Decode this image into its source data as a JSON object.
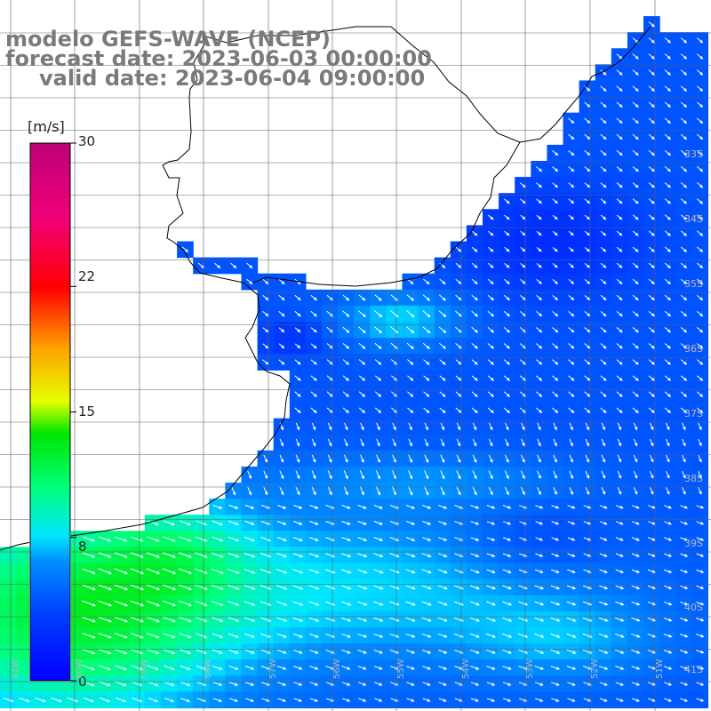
{
  "title": {
    "line1": "modelo GEFS-WAVE (NCEP)",
    "line2": "forecast date: 2023-06-03 00:00:00",
    "line3": "valid date: 2023-06-04 09:00:00"
  },
  "colorbar": {
    "unit": "[m/s]",
    "ticks": [
      "30",
      "22",
      "15",
      "8",
      "0"
    ],
    "tick_values": [
      30,
      22,
      15,
      8,
      0
    ],
    "colors": [
      "#0000ff",
      "#0080ff",
      "#00ffff",
      "#00ff00",
      "#ffff00",
      "#ff8000",
      "#ff0000",
      "#ff00aa",
      "#c0007f"
    ]
  },
  "map": {
    "lat_labels": [
      "33S",
      "34S",
      "35S",
      "36S",
      "37S",
      "38S",
      "39S",
      "40S",
      "41S"
    ],
    "lon_labels": [
      "61W",
      "60W",
      "59W",
      "58W",
      "57W",
      "56W",
      "55W",
      "54W",
      "53W",
      "52W",
      "51W"
    ],
    "colors": {
      "land": "#ffffff",
      "coast": "#000000",
      "grid": "#606060",
      "arrow": "#ffffff"
    }
  }
}
